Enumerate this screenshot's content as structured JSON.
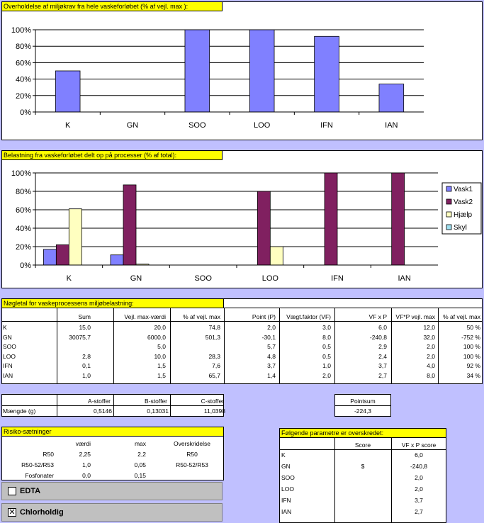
{
  "chart1": {
    "title": "Overholdelse af miljøkrav fra hele vaskeforløbet (% af vejl. max ):",
    "chart_data": {
      "type": "bar",
      "categories": [
        "K",
        "GN",
        "SOO",
        "LOO",
        "IFN",
        "IAN"
      ],
      "values": [
        50,
        0,
        100,
        100,
        92,
        34
      ],
      "ylim": [
        0,
        100
      ],
      "yticks": [
        "0%",
        "20%",
        "40%",
        "60%",
        "80%",
        "100%"
      ],
      "grid": true,
      "color": "#8080ff"
    }
  },
  "chart2": {
    "title": "Belastning fra vaskeforløbet delt op på processer (% af total):",
    "chart_data": {
      "type": "bar",
      "categories": [
        "K",
        "GN",
        "SOO",
        "LOO",
        "IFN",
        "IAN"
      ],
      "ylim": [
        0,
        100
      ],
      "yticks": [
        "0%",
        "20%",
        "40%",
        "60%",
        "80%",
        "100%"
      ],
      "grid": true,
      "legend": "right",
      "series": [
        {
          "name": "Vask1",
          "color": "#8080ff",
          "values": [
            17,
            11,
            0,
            0,
            0,
            0
          ]
        },
        {
          "name": "Vask2",
          "color": "#802060",
          "values": [
            22,
            87,
            0,
            80,
            100,
            100
          ]
        },
        {
          "name": "Hjælp",
          "color": "#ffffc0",
          "values": [
            61,
            1,
            0,
            20,
            0,
            0
          ]
        },
        {
          "name": "Skyl",
          "color": "#a0e0f0",
          "values": [
            0,
            0,
            0,
            0,
            0,
            0
          ]
        }
      ]
    }
  },
  "keytable": {
    "title": "Nøgletal for vaskeprocessens miljøbelastning:",
    "headers": [
      "Sum",
      "Vejl. max-værdi",
      "% af vejl. max",
      "Point (P)",
      "Vægt.faktor (VF)",
      "VF x P",
      "VF*P vejl. max",
      "% af vejl. max"
    ],
    "rows": [
      {
        "label": "K",
        "cells": [
          "15,0",
          "20,0",
          "74,8",
          "2,0",
          "3,0",
          "6,0",
          "12,0",
          "50 %"
        ]
      },
      {
        "label": "GN",
        "cells": [
          "30075,7",
          "6000,0",
          "501,3",
          "-30,1",
          "8,0",
          "-240,8",
          "32,0",
          "-752 %"
        ]
      },
      {
        "label": "SOO",
        "cells": [
          "",
          "5,0",
          "",
          "5,7",
          "0,5",
          "2,9",
          "2,0",
          "100 %"
        ]
      },
      {
        "label": "LOO",
        "cells": [
          "2,8",
          "10,0",
          "28,3",
          "4,8",
          "0,5",
          "2,4",
          "2,0",
          "100 %"
        ]
      },
      {
        "label": "IFN",
        "cells": [
          "0,1",
          "1,5",
          "7,6",
          "3,7",
          "1,0",
          "3,7",
          "4,0",
          "92 %"
        ]
      },
      {
        "label": "IAN",
        "cells": [
          "1,0",
          "1,5",
          "65,7",
          "1,4",
          "2,0",
          "2,7",
          "8,0",
          "34 %"
        ]
      }
    ]
  },
  "stoffer": {
    "headers": [
      "A-stoffer",
      "B-stoffer",
      "C-stoffer"
    ],
    "row_label": "Mængde (g)",
    "values": [
      "0,5146",
      "0,13031",
      "11,0398"
    ]
  },
  "pointsum": {
    "label": "Pointsum",
    "value": "-224,3"
  },
  "risiko": {
    "title": "Risiko-sætninger",
    "headers": [
      "værdi",
      "max",
      "Overskridelse"
    ],
    "rows": [
      {
        "label": "R50",
        "vaerdi": "2,25",
        "max": "2,2",
        "over": "R50"
      },
      {
        "label": "R50-52/R53",
        "vaerdi": "1,0",
        "max": "0,05",
        "over": "R50-52/R53"
      },
      {
        "label": "Fosfonater",
        "vaerdi": "0,0",
        "max": "0,15",
        "over": ""
      }
    ]
  },
  "checkboxes": [
    {
      "label": "EDTA",
      "checked": false,
      "mark": ""
    },
    {
      "label": "Chlorholdig",
      "checked": true,
      "mark": "✕"
    }
  ],
  "parametre": {
    "title": "Følgende parametre er overskredet:",
    "headers": [
      "Score",
      "VF x P score"
    ],
    "rows": [
      {
        "label": "K",
        "score": "",
        "vfp": "6,0"
      },
      {
        "label": "GN",
        "score": "$",
        "vfp": "-240,8"
      },
      {
        "label": "SOO",
        "score": "",
        "vfp": "2,0"
      },
      {
        "label": "LOO",
        "score": "",
        "vfp": "2,0"
      },
      {
        "label": "IFN",
        "score": "",
        "vfp": "3,7"
      },
      {
        "label": "IAN",
        "score": "",
        "vfp": "2,7"
      }
    ]
  }
}
